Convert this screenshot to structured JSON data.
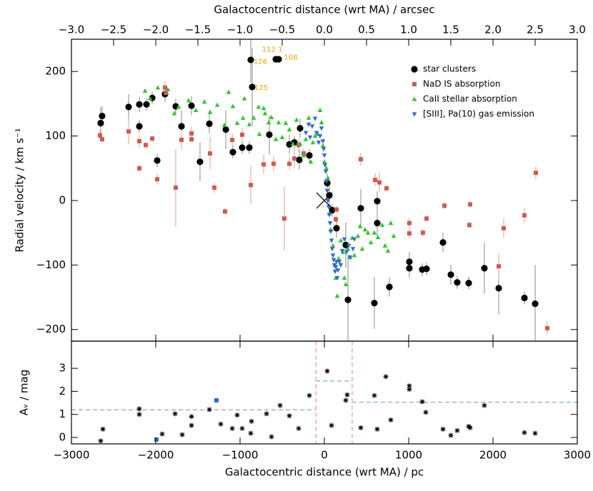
{
  "chart_data": [
    {
      "type": "scatter",
      "ylabel": "Radial velocity / km s⁻¹",
      "x2label": "Galactocentric distance (wrt MA) / arcsec",
      "xlim": [
        -3000,
        3000
      ],
      "ylim": [
        -218,
        250
      ],
      "x2lim": [
        -3,
        3
      ],
      "x2ticks": [
        {
          "value": -3,
          "label": "−3.0"
        },
        {
          "value": -2.5,
          "label": "−2.5"
        },
        {
          "value": -2,
          "label": "−2.0"
        },
        {
          "value": -1.5,
          "label": "−1.5"
        },
        {
          "value": -1,
          "label": "−1.0"
        },
        {
          "value": -0.5,
          "label": "−0.5"
        },
        {
          "value": 0,
          "label": "0.0"
        },
        0.5,
        {
          "value": 1,
          "label": "1.0"
        },
        1.5,
        {
          "value": 2,
          "label": "2.0"
        },
        2.5,
        {
          "value": 3,
          "label": "3.0"
        }
      ],
      "yticks": [
        {
          "value": -200,
          "label": "−200"
        },
        {
          "value": -100,
          "label": "−100"
        },
        0,
        100,
        200
      ],
      "legend": "upper right",
      "series": [
        {
          "name": "star clusters",
          "color": "#000000",
          "marker": "circle",
          "error_color": "#8a8a8a",
          "x": [
            -2653,
            -2636,
            -2322,
            -2195,
            -2195,
            -2110,
            -2042,
            -1983,
            -1890,
            -1763,
            -1695,
            -1576,
            -1475,
            -1364,
            -1169,
            -1085,
            -975,
            -890,
            -873,
            -856,
            -653,
            -576,
            -542,
            -415,
            -356,
            -288,
            -297,
            -178,
            34,
            59,
            93,
            144,
            254,
            280,
            432,
            627,
            627,
            593,
            771,
            1008,
            1008,
            1161,
            1212,
            1407,
            1500,
            1576,
            1712,
            1898,
            2068,
            2373,
            2500
          ],
          "values": [
            120,
            131,
            145,
            149,
            115,
            149,
            159,
            62,
            165,
            146,
            115,
            147,
            60,
            119,
            110,
            75,
            82,
            82,
            218,
            176,
            102,
            219,
            219,
            87,
            90,
            112,
            63,
            70,
            27,
            8,
            -15,
            -43,
            -69,
            -154,
            -12,
            -1,
            -35,
            -159,
            -134,
            -95,
            -105,
            -107,
            -106,
            -65,
            -115,
            -127,
            -128,
            -105,
            -136,
            -151,
            -160
          ],
          "errors": [
            25,
            15,
            20,
            12,
            10,
            10,
            10,
            10,
            12,
            12,
            25,
            15,
            30,
            15,
            30,
            10,
            10,
            10,
            35,
            60,
            30,
            5,
            5,
            15,
            10,
            15,
            15,
            10,
            15,
            15,
            10,
            15,
            35,
            70,
            30,
            15,
            20,
            40,
            15,
            15,
            15,
            10,
            10,
            15,
            15,
            10,
            10,
            40,
            40,
            10,
            60
          ]
        },
        {
          "name": "NaD IS absorption",
          "color": "#cd5b57",
          "marker": "square",
          "error_color": "#ec9a92",
          "x": [
            -2661,
            -2636,
            -2322,
            -2195,
            -2195,
            -2119,
            -2042,
            -1983,
            -1890,
            -1881,
            -1763,
            -1695,
            -1576,
            -1576,
            -1356,
            -1305,
            -1178,
            -1093,
            -975,
            -873,
            -720,
            -602,
            -475,
            -415,
            -356,
            -305,
            -246,
            136,
            144,
            432,
            602,
            653,
            737,
            1008,
            1008,
            1169,
            1212,
            1424,
            1720,
            1729,
            2068,
            2127,
            2373,
            2508,
            2644
          ],
          "values": [
            101,
            95,
            107,
            92,
            50,
            86,
            96,
            33,
            175,
            167,
            20,
            94,
            104,
            95,
            73,
            20,
            -17,
            94,
            102,
            24,
            56,
            57,
            -28,
            57,
            65,
            86,
            73,
            -29,
            -14,
            64,
            32,
            28,
            19,
            -35,
            -51,
            -50,
            -28,
            -8,
            -38,
            -6,
            -102,
            -43,
            -23,
            43,
            -198
          ],
          "errors": [
            8,
            5,
            20,
            10,
            5,
            5,
            5,
            8,
            10,
            8,
            60,
            15,
            10,
            5,
            25,
            8,
            5,
            10,
            10,
            30,
            15,
            12,
            50,
            10,
            15,
            10,
            8,
            5,
            5,
            10,
            10,
            15,
            5,
            8,
            8,
            6,
            5,
            5,
            5,
            5,
            20,
            15,
            12,
            10,
            10
          ]
        },
        {
          "name": "CaII stellar absorption",
          "color": "#2ec82e",
          "marker": "triangle-up",
          "x": [
            -2127,
            -2068,
            -1975,
            -1856,
            -1780,
            -1729,
            -1610,
            -1525,
            -1424,
            -1356,
            -1271,
            -1186,
            -1136,
            -1085,
            -1034,
            -966,
            -949,
            -890,
            -839,
            -780,
            -771,
            -720,
            -703,
            -661,
            -627,
            -576,
            -542,
            -500,
            -458,
            -415,
            -373,
            -330,
            -288,
            -246,
            -220,
            -186,
            -161,
            -136,
            -110,
            -76,
            -51,
            -34,
            -17,
            0,
            25,
            42,
            59,
            76,
            102,
            127,
            136,
            153,
            170,
            195,
            220,
            237,
            254,
            280,
            305,
            331,
            356,
            398,
            424,
            449,
            483,
            517,
            551,
            593,
            636,
            686,
            720,
            754,
            788,
            822
          ],
          "values": [
            170,
            158,
            175,
            172,
            135,
            145,
            155,
            140,
            153,
            137,
            148,
            117,
            168,
            146,
            120,
            128,
            158,
            118,
            128,
            145,
            103,
            143,
            135,
            121,
            129,
            95,
            121,
            98,
            120,
            110,
            88,
            125,
            88,
            70,
            95,
            128,
            60,
            90,
            100,
            103,
            140,
            121,
            85,
            60,
            50,
            35,
            -20,
            -45,
            -70,
            -100,
            -120,
            -148,
            -90,
            -62,
            -80,
            -120,
            -130,
            -75,
            -88,
            -58,
            -85,
            -55,
            -40,
            -75,
            -45,
            -50,
            -65,
            -50,
            -57,
            -38,
            -70,
            -78,
            -35,
            -55
          ]
        },
        {
          "name": "[SIII], Pa(10) gas emission",
          "color": "#3568d8",
          "marker": "triangle-down",
          "x": [
            -220,
            -186,
            -169,
            -144,
            -110,
            -93,
            -68,
            -51,
            -34,
            -17,
            -8,
            0,
            8,
            17,
            25,
            34,
            42,
            51,
            59,
            68,
            76,
            85,
            93,
            102,
            110,
            119,
            127,
            136,
            144,
            153,
            161,
            178,
            195,
            212,
            237,
            263,
            288,
            305,
            339,
            356
          ],
          "values": [
            105,
            118,
            98,
            115,
            127,
            105,
            90,
            100,
            112,
            92,
            80,
            70,
            55,
            45,
            30,
            15,
            0,
            -10,
            -22,
            -35,
            -48,
            -62,
            -75,
            -85,
            -92,
            -100,
            -110,
            -103,
            -95,
            -120,
            -108,
            -95,
            -100,
            -78,
            -60,
            -80,
            -70,
            -88,
            -75,
            -60
          ]
        }
      ],
      "annotations": [
        {
          "text": "126",
          "x": -840,
          "y": 215
        },
        {
          "text": "125",
          "x": -830,
          "y": 175
        },
        {
          "text": "112",
          "x": -740,
          "y": 234
        },
        {
          "text": "1",
          "x": -550,
          "y": 234
        },
        {
          "text": "108",
          "x": -480,
          "y": 222
        }
      ],
      "annotation_color": "#f0a000",
      "reference_point": {
        "x": 0,
        "y": 0
      }
    },
    {
      "type": "scatter",
      "xlabel": "Galactocentric distance (wrt MA) / pc",
      "ylabel": "Aᵥ / mag",
      "xlim": [
        -3000,
        3000
      ],
      "ylim": [
        -0.28,
        4.18
      ],
      "xticks": [
        {
          "value": -3000,
          "label": "−3000"
        },
        {
          "value": -2000,
          "label": "−2000"
        },
        {
          "value": -1000,
          "label": "−1000"
        },
        0,
        1000,
        2000,
        3000
      ],
      "yticks": [
        0,
        1,
        2,
        3
      ],
      "series": [
        {
          "color": "#000000",
          "marker": "asterisk",
          "x": [
            -2627,
            -2653,
            -2195,
            -2195,
            -1771,
            -1924,
            -1686,
            -1576,
            -1576,
            -1364,
            -1229,
            -1093,
            -1034,
            -975,
            -873,
            -864,
            -686,
            -627,
            -525,
            -415,
            -305,
            -178,
            34,
            85,
            271,
            254,
            432,
            593,
            627,
            729,
            788,
            1008,
            1008,
            1161,
            1203,
            1407,
            1500,
            1576,
            1712,
            1729,
            1898,
            2373,
            2500
          ],
          "values": [
            0.36,
            -0.15,
            1.24,
            1.0,
            1.03,
            0.15,
            0.12,
            0.91,
            0.52,
            1.21,
            0.58,
            0.39,
            0.97,
            0.39,
            0.18,
            0.7,
            1.03,
            0.03,
            1.39,
            0.94,
            0.39,
            1.82,
            2.88,
            0.52,
            1.85,
            1.61,
            0.42,
            1.82,
            0.36,
            2.64,
            0.76,
            2.24,
            2.09,
            1.55,
            1.09,
            0.36,
            0.09,
            0.3,
            0.48,
            0.42,
            1.39,
            0.21,
            0.18
          ]
        },
        {
          "color": "#3568d8",
          "marker": "square",
          "x": [
            -1280,
            -1992
          ],
          "values": [
            1.61,
            -0.09
          ]
        }
      ],
      "hlines": [
        {
          "x": [
            -3000,
            -100
          ],
          "y": 1.2
        },
        {
          "x": [
            -100,
            330
          ],
          "y": 2.45
        },
        {
          "x": [
            330,
            3000
          ],
          "y": 1.53
        }
      ],
      "hline_color": "#7fa6d8",
      "vlines": [
        -100,
        330
      ],
      "vline_color": "#f08fa0"
    }
  ]
}
